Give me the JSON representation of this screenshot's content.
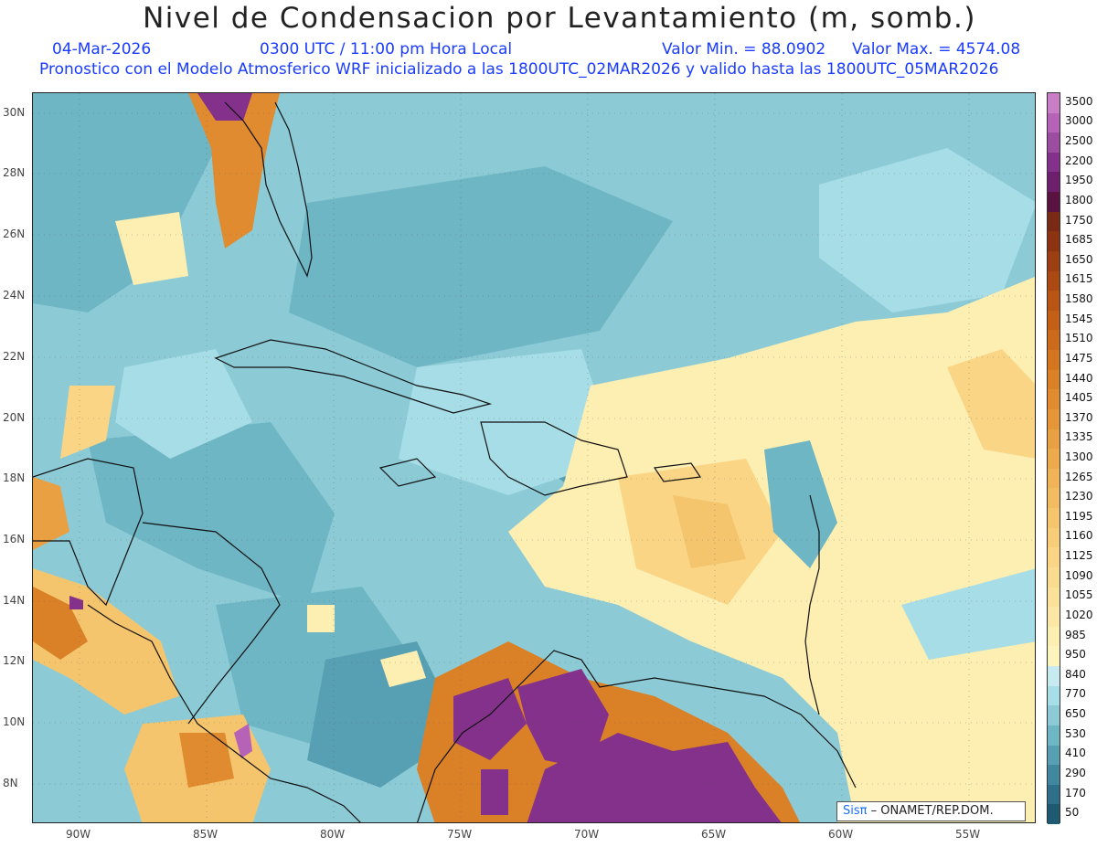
{
  "header": {
    "title": "Nivel de Condensacion por Levantamiento (m, somb.)",
    "date": "04-Mar-2026",
    "time": "0300 UTC / 11:00 pm Hora Local",
    "valor_min": "Valor Min. = 88.0902",
    "valor_max": "Valor Max. = 4574.08",
    "model_info": "Pronostico con el Modelo Atmosferico WRF inicializado a las 1800UTC_02MAR2026 y valido hasta las  1800UTC_05MAR2026"
  },
  "axes": {
    "lat_labels": [
      "30N",
      "28N",
      "26N",
      "24N",
      "22N",
      "20N",
      "18N",
      "16N",
      "14N",
      "12N",
      "10N",
      "8N"
    ],
    "lon_labels": [
      "90W",
      "85W",
      "80W",
      "75W",
      "70W",
      "65W",
      "60W",
      "55W"
    ]
  },
  "colorbar": {
    "levels": [
      "3500",
      "3000",
      "2500",
      "2200",
      "1950",
      "1800",
      "1750",
      "1685",
      "1650",
      "1615",
      "1580",
      "1545",
      "1510",
      "1475",
      "1440",
      "1405",
      "1370",
      "1335",
      "1300",
      "1265",
      "1230",
      "1195",
      "1160",
      "1125",
      "1090",
      "1055",
      "1020",
      "985",
      "950",
      "840",
      "770",
      "650",
      "530",
      "410",
      "290",
      "170",
      "50"
    ],
    "colors": [
      "#c77ec4",
      "#b662b6",
      "#9d4da0",
      "#83318a",
      "#6d1f6e",
      "#5a1240",
      "#7a2a14",
      "#8c3412",
      "#9c3f12",
      "#ab4913",
      "#b85414",
      "#c35f17",
      "#cc6a1c",
      "#d47520",
      "#da8027",
      "#e08b2f",
      "#e59638",
      "#e9a042",
      "#edaa4d",
      "#f0b357",
      "#f3bc62",
      "#f5c56d",
      "#f7cd79",
      "#f9d585",
      "#fadc90",
      "#fbe29b",
      "#fce8a6",
      "#fdeeb2",
      "#fdf3bd",
      "#c7eaf0",
      "#a7dde6",
      "#8ccbd6",
      "#6fb6c5",
      "#579fb2",
      "#41879e",
      "#2e7089",
      "#1f5a73"
    ]
  },
  "credit": {
    "sis": "Sisπ",
    "org": "– ONAMET/REP.DOM."
  }
}
